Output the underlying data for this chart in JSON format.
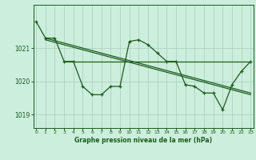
{
  "title": "Graphe pression niveau de la mer (hPa)",
  "bg_color": "#cceedd",
  "grid_color": "#aaccbb",
  "line_color": "#1a5c1a",
  "hours": [
    0,
    1,
    2,
    3,
    4,
    5,
    6,
    7,
    8,
    9,
    10,
    11,
    12,
    13,
    14,
    15,
    16,
    17,
    18,
    19,
    20,
    21,
    22,
    23
  ],
  "pressure": [
    1021.8,
    1021.3,
    1021.3,
    1020.6,
    1020.6,
    1019.85,
    1019.6,
    1019.6,
    1019.85,
    1019.85,
    1021.2,
    1021.25,
    1021.1,
    1020.85,
    1020.6,
    1020.6,
    1019.9,
    1019.85,
    1019.65,
    1019.65,
    1019.15,
    1019.9,
    1020.3,
    1020.6
  ],
  "trend1_x": [
    1,
    23
  ],
  "trend1_y": [
    1021.3,
    1019.65
  ],
  "trend2_x": [
    1,
    23
  ],
  "trend2_y": [
    1021.25,
    1019.6
  ],
  "flat_line_x": [
    3,
    23
  ],
  "flat_line_y": 1020.6,
  "yticks": [
    1019,
    1020,
    1021
  ],
  "ylim": [
    1018.6,
    1022.3
  ],
  "xlim": [
    -0.3,
    23.3
  ]
}
